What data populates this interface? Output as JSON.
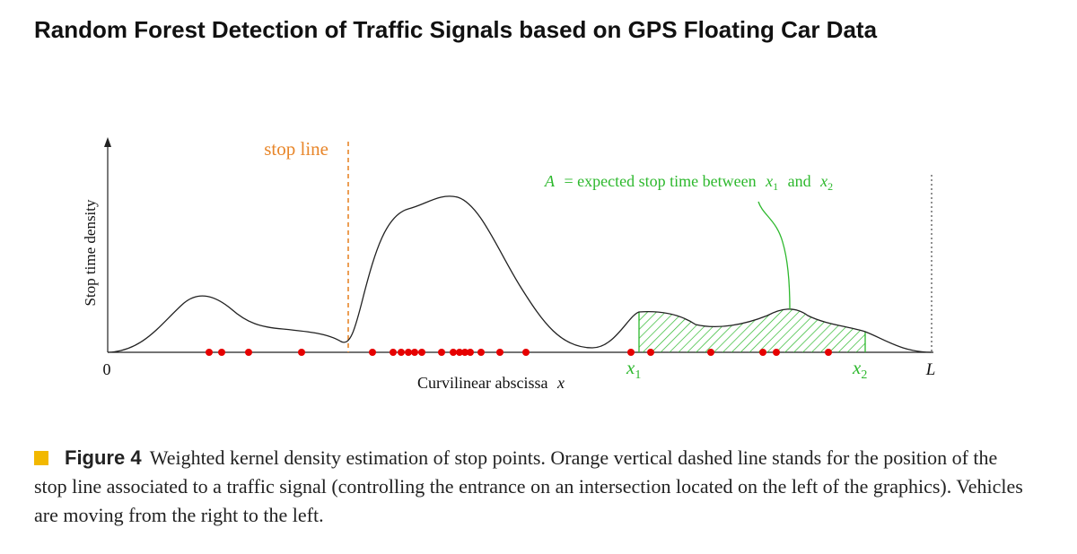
{
  "paper_title": "Random Forest Detection of Traffic Signals based on GPS Floating Car Data",
  "figure": {
    "y_axis_label": "Stop time density",
    "x_axis_label": "Curvilinear abscissa",
    "x_axis_symbol": "x",
    "origin_label": "0",
    "end_label": "L",
    "stop_line_label": "stop line",
    "annotation": {
      "lhs": "A",
      "text": "= expected stop time between",
      "var1": "x",
      "sub1": "1",
      "conj": "and",
      "var2": "x",
      "sub2": "2"
    },
    "x1_label": {
      "var": "x",
      "sub": "1"
    },
    "x2_label": {
      "var": "x",
      "sub": "2"
    },
    "colors": {
      "curve": "#222222",
      "stop_line": "#e8862a",
      "stop_points": "#e60000",
      "shaded_area": "#2db82d",
      "boundary": "#555555"
    }
  },
  "caption": {
    "label": "Figure 4",
    "text": "Weighted kernel density estimation of stop points. Orange vertical dashed line stands for the position of the stop line associated to a traffic signal (controlling the entrance on an intersection located on the left of the graphics). Vehicles are moving from the right to the left."
  }
}
